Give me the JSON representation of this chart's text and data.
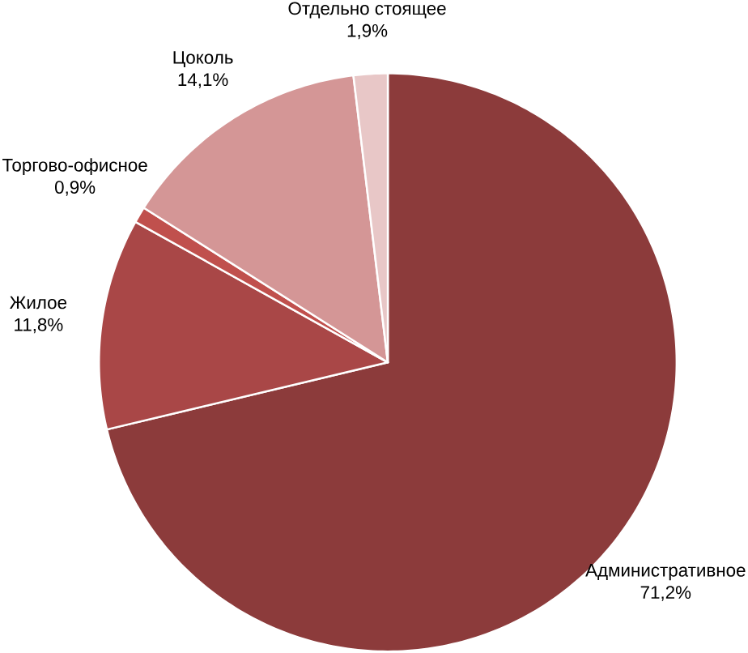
{
  "chart_data": {
    "type": "pie",
    "categories": [
      "Административное",
      "Жилое",
      "Торгово-офисное",
      "Цоколь",
      "Отдельно стоящее"
    ],
    "values": [
      71.2,
      11.8,
      0.9,
      14.1,
      1.9
    ],
    "value_labels": [
      "71,2%",
      "11,8%",
      "0,9%",
      "14,1%",
      "1,9%"
    ],
    "colors": [
      "#8c3b3b",
      "#a94747",
      "#c0504d",
      "#d49696",
      "#e8c7c7"
    ]
  }
}
